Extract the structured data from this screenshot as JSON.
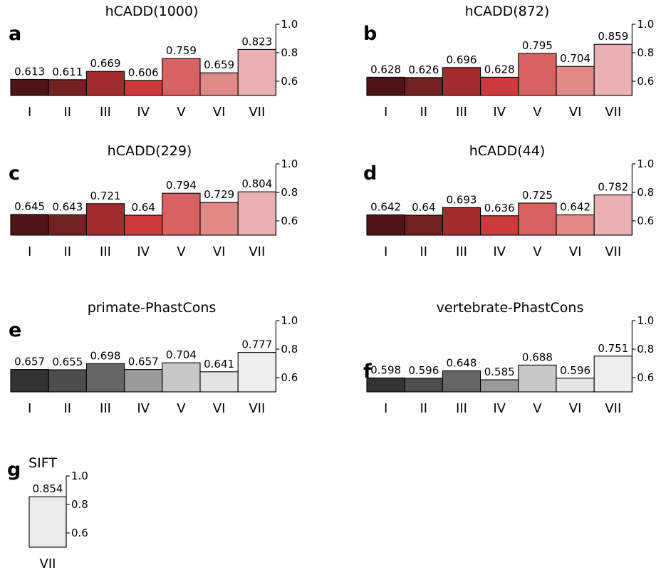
{
  "chart_data": [
    {
      "panel": "a",
      "type": "bar",
      "title": "hCADD(1000)",
      "categories": [
        "I",
        "II",
        "III",
        "IV",
        "V",
        "VI",
        "VII"
      ],
      "values": [
        0.613,
        0.611,
        0.669,
        0.606,
        0.759,
        0.659,
        0.823
      ],
      "value_labels": [
        "0.613",
        "0.611",
        "0.669",
        "0.606",
        "0.759",
        "0.659",
        "0.823"
      ],
      "colors": [
        "#4e1416",
        "#722021",
        "#a42b2e",
        "#cc3a3b",
        "#d96162",
        "#e08a88",
        "#e9b1b1"
      ],
      "yticks": [
        "0.6",
        "0.8",
        "1.0"
      ],
      "ylim": [
        0.5,
        1.0
      ]
    },
    {
      "panel": "b",
      "type": "bar",
      "title": "hCADD(872)",
      "categories": [
        "I",
        "II",
        "III",
        "IV",
        "V",
        "VI",
        "VII"
      ],
      "values": [
        0.628,
        0.626,
        0.696,
        0.628,
        0.795,
        0.704,
        0.859
      ],
      "value_labels": [
        "0.628",
        "0.626",
        "0.696",
        "0.628",
        "0.795",
        "0.704",
        "0.859"
      ],
      "colors": [
        "#4e1416",
        "#722021",
        "#a42b2e",
        "#cc3a3b",
        "#d96162",
        "#e08a88",
        "#e9b1b1"
      ],
      "yticks": [
        "0.6",
        "0.8",
        "1.0"
      ],
      "ylim": [
        0.5,
        1.0
      ]
    },
    {
      "panel": "c",
      "type": "bar",
      "title": "hCADD(229)",
      "categories": [
        "I",
        "II",
        "III",
        "IV",
        "V",
        "VI",
        "VII"
      ],
      "values": [
        0.645,
        0.643,
        0.721,
        0.64,
        0.794,
        0.729,
        0.804
      ],
      "value_labels": [
        "0.645",
        "0.643",
        "0.721",
        "0.64",
        "0.794",
        "0.729",
        "0.804"
      ],
      "colors": [
        "#4e1416",
        "#722021",
        "#a42b2e",
        "#cc3a3b",
        "#d96162",
        "#e08a88",
        "#e9b1b1"
      ],
      "yticks": [
        "0.6",
        "0.8",
        "1.0"
      ],
      "ylim": [
        0.5,
        1.0
      ]
    },
    {
      "panel": "d",
      "type": "bar",
      "title": "hCADD(44)",
      "categories": [
        "I",
        "II",
        "III",
        "IV",
        "V",
        "VI",
        "VII"
      ],
      "values": [
        0.642,
        0.64,
        0.693,
        0.636,
        0.725,
        0.642,
        0.782
      ],
      "value_labels": [
        "0.642",
        "0.64",
        "0.693",
        "0.636",
        "0.725",
        "0.642",
        "0.782"
      ],
      "colors": [
        "#4e1416",
        "#722021",
        "#a42b2e",
        "#cc3a3b",
        "#d96162",
        "#e08a88",
        "#e9b1b1"
      ],
      "yticks": [
        "0.6",
        "0.8",
        "1.0"
      ],
      "ylim": [
        0.5,
        1.0
      ]
    },
    {
      "panel": "e",
      "type": "bar",
      "title": "primate-PhastCons",
      "categories": [
        "I",
        "II",
        "III",
        "IV",
        "V",
        "VI",
        "VII"
      ],
      "values": [
        0.657,
        0.655,
        0.698,
        0.657,
        0.704,
        0.641,
        0.777
      ],
      "value_labels": [
        "0.657",
        "0.655",
        "0.698",
        "0.657",
        "0.704",
        "0.641",
        "0.777"
      ],
      "colors": [
        "#333333",
        "#4d4d4d",
        "#666666",
        "#9a9a9a",
        "#c8c8c8",
        "#e3e3e3",
        "#eeeeee"
      ],
      "yticks": [
        "0.6",
        "0.8",
        "1.0"
      ],
      "ylim": [
        0.5,
        1.0
      ]
    },
    {
      "panel": "f",
      "type": "bar",
      "title": "vertebrate-PhastCons",
      "categories": [
        "I",
        "II",
        "III",
        "IV",
        "V",
        "VI",
        "VII"
      ],
      "values": [
        0.598,
        0.596,
        0.648,
        0.585,
        0.688,
        0.596,
        0.751
      ],
      "value_labels": [
        "0.598",
        "0.596",
        "0.648",
        "0.585",
        "0.688",
        "0.596",
        "0.751"
      ],
      "colors": [
        "#333333",
        "#4d4d4d",
        "#666666",
        "#9a9a9a",
        "#c8c8c8",
        "#e3e3e3",
        "#eeeeee"
      ],
      "yticks": [
        "0.6",
        "0.8",
        "1.0"
      ],
      "ylim": [
        0.5,
        1.0
      ]
    },
    {
      "panel": "g",
      "type": "bar",
      "title": "SIFT",
      "categories": [
        "VII"
      ],
      "values": [
        0.854
      ],
      "value_labels": [
        "0.854"
      ],
      "colors": [
        "#eaeaea"
      ],
      "yticks": [
        "0.6",
        "0.8",
        "1.0"
      ],
      "ylim": [
        0.5,
        1.0
      ]
    }
  ]
}
